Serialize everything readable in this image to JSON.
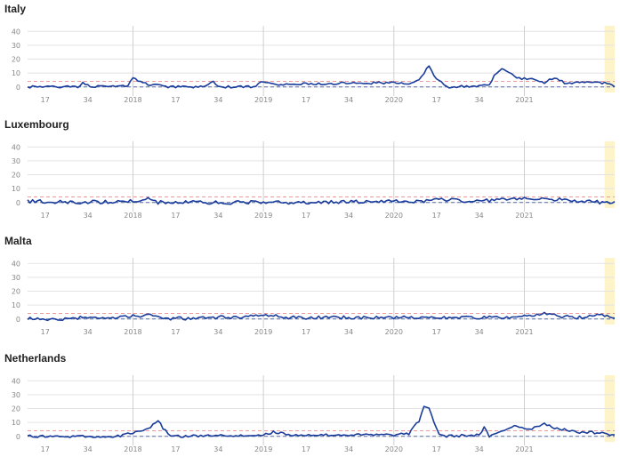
{
  "chart_data": [
    {
      "type": "line",
      "title": "Italy",
      "ylim": [
        -4,
        44
      ],
      "yticks": [
        0,
        10,
        20,
        30,
        40
      ],
      "x_range": [
        0,
        234
      ],
      "x_ticks": [
        {
          "x": 7,
          "label": "17"
        },
        {
          "x": 24,
          "label": "34"
        },
        {
          "x": 42,
          "label": "2018"
        },
        {
          "x": 59,
          "label": "17"
        },
        {
          "x": 76,
          "label": "34"
        },
        {
          "x": 94,
          "label": "2019"
        },
        {
          "x": 111,
          "label": "17"
        },
        {
          "x": 128,
          "label": "34"
        },
        {
          "x": 146,
          "label": "2020"
        },
        {
          "x": 163,
          "label": "17"
        },
        {
          "x": 180,
          "label": "34"
        },
        {
          "x": 198,
          "label": "2021"
        }
      ],
      "year_lines": [
        42,
        94,
        146,
        198
      ],
      "highlight": [
        230,
        234
      ],
      "baseline": 0,
      "threshold": 4,
      "grid": true,
      "knots": [
        [
          0,
          0
        ],
        [
          10,
          0
        ],
        [
          20,
          0
        ],
        [
          22,
          3
        ],
        [
          26,
          0
        ],
        [
          40,
          1
        ],
        [
          42,
          7
        ],
        [
          44,
          4
        ],
        [
          48,
          2
        ],
        [
          52,
          1
        ],
        [
          56,
          0
        ],
        [
          70,
          0
        ],
        [
          74,
          4
        ],
        [
          76,
          0
        ],
        [
          90,
          0
        ],
        [
          94,
          4
        ],
        [
          98,
          3
        ],
        [
          100,
          2
        ],
        [
          146,
          3
        ],
        [
          152,
          2
        ],
        [
          156,
          5
        ],
        [
          158,
          10
        ],
        [
          160,
          15
        ],
        [
          162,
          8
        ],
        [
          166,
          2
        ],
        [
          168,
          0
        ],
        [
          184,
          1
        ],
        [
          186,
          8
        ],
        [
          188,
          12
        ],
        [
          190,
          13
        ],
        [
          194,
          8
        ],
        [
          196,
          6
        ],
        [
          200,
          6
        ],
        [
          202,
          5
        ],
        [
          204,
          4
        ],
        [
          206,
          3
        ],
        [
          208,
          6
        ],
        [
          212,
          5
        ],
        [
          214,
          3
        ],
        [
          226,
          3
        ],
        [
          230,
          3
        ],
        [
          234,
          0
        ]
      ],
      "noise_amp": 0.8,
      "noise_seed": 1
    },
    {
      "type": "line",
      "title": "Luxembourg",
      "ylim": [
        -4,
        44
      ],
      "yticks": [
        0,
        10,
        20,
        30,
        40
      ],
      "x_range": [
        0,
        234
      ],
      "x_ticks": [
        {
          "x": 7,
          "label": "17"
        },
        {
          "x": 24,
          "label": "34"
        },
        {
          "x": 42,
          "label": "2018"
        },
        {
          "x": 59,
          "label": "17"
        },
        {
          "x": 76,
          "label": "34"
        },
        {
          "x": 94,
          "label": "2019"
        },
        {
          "x": 111,
          "label": "17"
        },
        {
          "x": 128,
          "label": "34"
        },
        {
          "x": 146,
          "label": "2020"
        },
        {
          "x": 163,
          "label": "17"
        },
        {
          "x": 180,
          "label": "34"
        },
        {
          "x": 198,
          "label": "2021"
        }
      ],
      "year_lines": [
        42,
        94,
        146,
        198
      ],
      "highlight": [
        230,
        234
      ],
      "baseline": 0,
      "threshold": 4,
      "grid": true,
      "knots": [
        [
          0,
          1
        ],
        [
          20,
          0
        ],
        [
          42,
          1
        ],
        [
          48,
          3
        ],
        [
          52,
          0
        ],
        [
          100,
          0
        ],
        [
          160,
          1
        ],
        [
          164,
          2
        ],
        [
          180,
          1
        ],
        [
          198,
          3
        ],
        [
          204,
          3
        ],
        [
          212,
          2
        ],
        [
          216,
          1
        ],
        [
          234,
          0
        ]
      ],
      "noise_amp": 1.3,
      "noise_seed": 2
    },
    {
      "type": "line",
      "title": "Malta",
      "ylim": [
        -4,
        44
      ],
      "yticks": [
        0,
        10,
        20,
        30,
        40
      ],
      "x_range": [
        0,
        234
      ],
      "x_ticks": [
        {
          "x": 7,
          "label": "17"
        },
        {
          "x": 24,
          "label": "34"
        },
        {
          "x": 42,
          "label": "2018"
        },
        {
          "x": 59,
          "label": "17"
        },
        {
          "x": 76,
          "label": "34"
        },
        {
          "x": 94,
          "label": "2019"
        },
        {
          "x": 111,
          "label": "17"
        },
        {
          "x": 128,
          "label": "34"
        },
        {
          "x": 146,
          "label": "2020"
        },
        {
          "x": 163,
          "label": "17"
        },
        {
          "x": 180,
          "label": "34"
        },
        {
          "x": 198,
          "label": "2021"
        }
      ],
      "year_lines": [
        42,
        94,
        146,
        198
      ],
      "highlight": [
        230,
        234
      ],
      "baseline": 0,
      "threshold": 4,
      "grid": true,
      "knots": [
        [
          0,
          0
        ],
        [
          20,
          0
        ],
        [
          22,
          2
        ],
        [
          30,
          0
        ],
        [
          42,
          2
        ],
        [
          50,
          3
        ],
        [
          54,
          0
        ],
        [
          94,
          2
        ],
        [
          98,
          3
        ],
        [
          104,
          1
        ],
        [
          146,
          1
        ],
        [
          150,
          2
        ],
        [
          156,
          1
        ],
        [
          196,
          1
        ],
        [
          204,
          3
        ],
        [
          206,
          4
        ],
        [
          212,
          2
        ],
        [
          220,
          1
        ],
        [
          230,
          3
        ],
        [
          234,
          1
        ]
      ],
      "noise_amp": 1.2,
      "noise_seed": 3
    },
    {
      "type": "line",
      "title": "Netherlands",
      "ylim": [
        -4,
        44
      ],
      "yticks": [
        0,
        10,
        20,
        30,
        40
      ],
      "x_range": [
        0,
        234
      ],
      "x_ticks": [
        {
          "x": 7,
          "label": "17"
        },
        {
          "x": 24,
          "label": "34"
        },
        {
          "x": 42,
          "label": "2018"
        },
        {
          "x": 59,
          "label": "17"
        },
        {
          "x": 76,
          "label": "34"
        },
        {
          "x": 94,
          "label": "2019"
        },
        {
          "x": 111,
          "label": "17"
        },
        {
          "x": 128,
          "label": "34"
        },
        {
          "x": 146,
          "label": "2020"
        },
        {
          "x": 163,
          "label": "17"
        },
        {
          "x": 180,
          "label": "34"
        },
        {
          "x": 198,
          "label": "2021"
        }
      ],
      "year_lines": [
        42,
        94,
        146,
        198
      ],
      "highlight": [
        230,
        234
      ],
      "baseline": 0,
      "threshold": 4,
      "grid": true,
      "knots": [
        [
          0,
          0
        ],
        [
          36,
          0
        ],
        [
          40,
          2
        ],
        [
          44,
          3
        ],
        [
          46,
          4
        ],
        [
          50,
          8
        ],
        [
          52,
          11
        ],
        [
          54,
          6
        ],
        [
          56,
          2
        ],
        [
          58,
          0
        ],
        [
          94,
          1
        ],
        [
          98,
          3
        ],
        [
          102,
          2
        ],
        [
          106,
          1
        ],
        [
          146,
          1
        ],
        [
          152,
          2
        ],
        [
          156,
          11
        ],
        [
          158,
          21
        ],
        [
          160,
          21
        ],
        [
          162,
          10
        ],
        [
          164,
          2
        ],
        [
          166,
          0
        ],
        [
          180,
          1
        ],
        [
          182,
          6
        ],
        [
          184,
          0
        ],
        [
          186,
          1
        ],
        [
          192,
          6
        ],
        [
          194,
          8
        ],
        [
          196,
          7
        ],
        [
          198,
          6
        ],
        [
          200,
          5
        ],
        [
          204,
          8
        ],
        [
          206,
          9
        ],
        [
          208,
          8
        ],
        [
          210,
          6
        ],
        [
          214,
          5
        ],
        [
          218,
          3
        ],
        [
          224,
          3
        ],
        [
          230,
          2
        ],
        [
          234,
          1
        ]
      ],
      "noise_amp": 0.9,
      "noise_seed": 4
    }
  ],
  "colors": {
    "line": "#1a3d9c",
    "baseline": "#5b6fa8",
    "threshold": "#ee9a9a",
    "grid": "#e3e3e3",
    "year_line": "#cfcfcf",
    "highlight": "#fdf5c9",
    "tick_text": "#888888"
  }
}
